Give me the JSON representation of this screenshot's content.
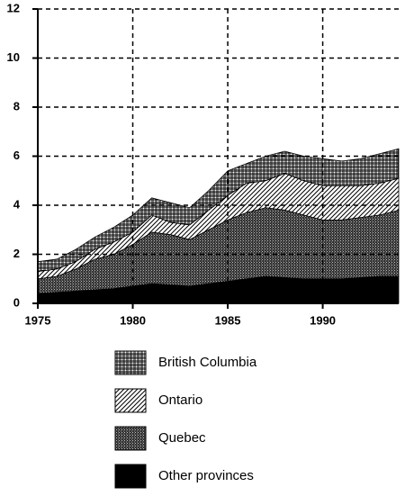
{
  "chart_data": {
    "type": "stacked_area",
    "x": [
      1975,
      1976,
      1977,
      1978,
      1979,
      1980,
      1981,
      1982,
      1983,
      1984,
      1985,
      1986,
      1987,
      1988,
      1989,
      1990,
      1991,
      1992,
      1993,
      1994
    ],
    "series": [
      {
        "name": "Other provinces",
        "color": "#000000",
        "pattern": "solid",
        "values": [
          0.4,
          0.45,
          0.5,
          0.55,
          0.6,
          0.7,
          0.8,
          0.75,
          0.7,
          0.8,
          0.9,
          1.0,
          1.1,
          1.05,
          1.0,
          1.0,
          1.0,
          1.05,
          1.1,
          1.1
        ]
      },
      {
        "name": "Quebec",
        "color": "#000000",
        "pattern": "dots",
        "values": [
          0.6,
          0.65,
          0.9,
          1.25,
          1.4,
          1.7,
          2.1,
          2.05,
          1.9,
          2.2,
          2.5,
          2.7,
          2.8,
          2.75,
          2.6,
          2.4,
          2.4,
          2.45,
          2.5,
          2.7
        ]
      },
      {
        "name": "Ontario",
        "color": "#000000",
        "pattern": "hatch",
        "values": [
          0.3,
          0.3,
          0.3,
          0.4,
          0.5,
          0.5,
          0.7,
          0.5,
          0.6,
          0.8,
          1.0,
          1.2,
          1.1,
          1.5,
          1.4,
          1.4,
          1.4,
          1.3,
          1.3,
          1.3
        ]
      },
      {
        "name": "British Columbia",
        "color": "#000000",
        "pattern": "grid",
        "values": [
          0.4,
          0.4,
          0.5,
          0.5,
          0.6,
          0.7,
          0.7,
          0.8,
          0.7,
          0.8,
          1.0,
          0.8,
          1.0,
          0.9,
          1.0,
          1.1,
          1.0,
          1.1,
          1.2,
          1.2
        ]
      }
    ],
    "xlim": [
      1975,
      1994
    ],
    "xticks": [
      1975,
      1980,
      1985,
      1990
    ],
    "ylim": [
      0,
      12
    ],
    "yticks": [
      0,
      2,
      4,
      6,
      8,
      10,
      12
    ],
    "grid": true
  }
}
